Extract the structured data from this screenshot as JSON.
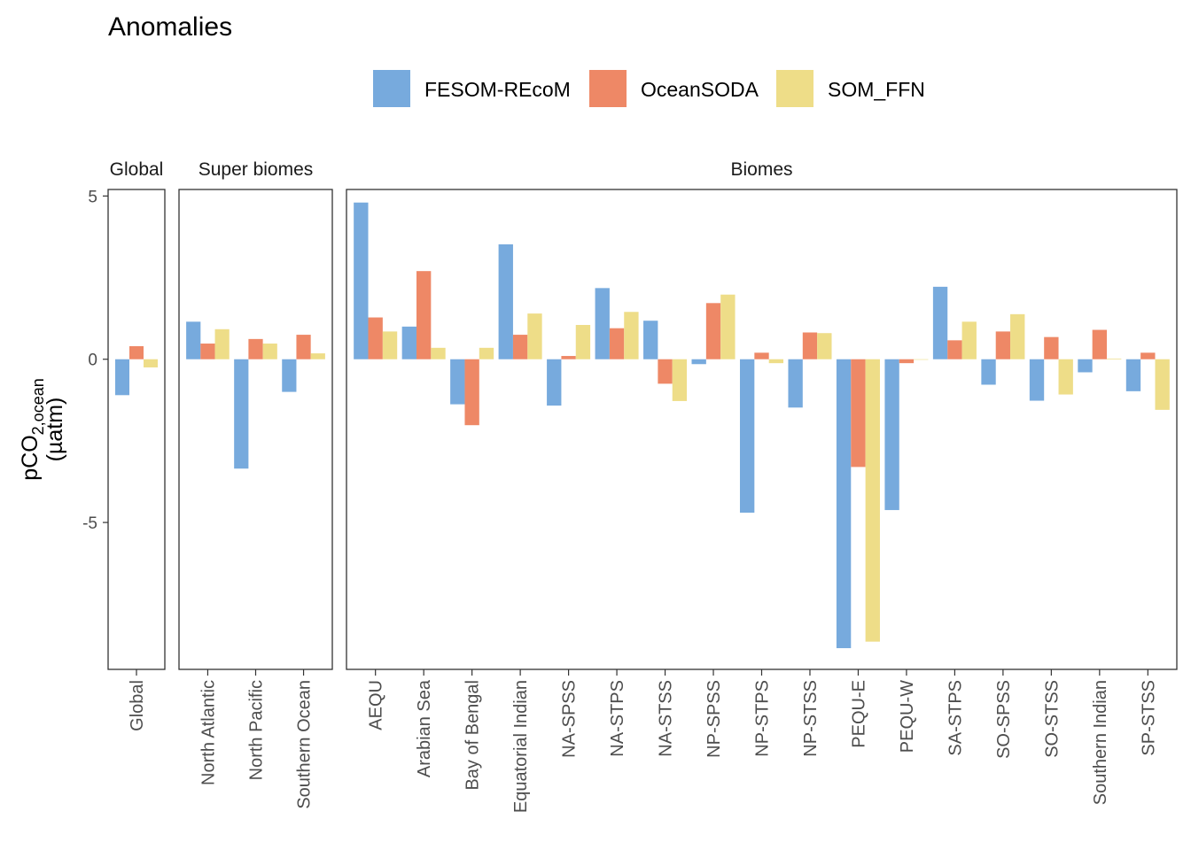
{
  "chart_data": {
    "type": "bar",
    "title": "Anomalies",
    "ylabel": "pCO2,ocean (µatm)",
    "ylabel_main": "pCO",
    "ylabel_sub": "2,ocean",
    "ylabel_unit": "(µatm)",
    "ylim": [
      -9.5,
      5.2
    ],
    "yticks": [
      5,
      0,
      -5
    ],
    "ytick_labels": [
      "5",
      "0",
      "-5"
    ],
    "grid": false,
    "legend_position": "top",
    "series": [
      {
        "name": "FESOM-REcoM",
        "color": "#77AADD"
      },
      {
        "name": "OceanSODA",
        "color": "#EE8866"
      },
      {
        "name": "SOM_FFN",
        "color": "#EEDD88"
      }
    ],
    "panels": [
      {
        "title": "Global",
        "categories": [
          "Global"
        ],
        "values": [
          [
            -1.1
          ],
          [
            0.4
          ],
          [
            -0.25
          ]
        ]
      },
      {
        "title": "Super biomes",
        "categories": [
          "North Atlantic",
          "North Pacific",
          "Southern Ocean"
        ],
        "values": [
          [
            1.15,
            -3.35,
            -1.0
          ],
          [
            0.48,
            0.62,
            0.75
          ],
          [
            0.92,
            0.48,
            0.18
          ]
        ]
      },
      {
        "title": "Biomes",
        "categories": [
          "AEQU",
          "Arabian Sea",
          "Bay of Bengal",
          "Equatorial Indian",
          "NA-SPSS",
          "NA-STPS",
          "NA-STSS",
          "NP-SPSS",
          "NP-STPS",
          "NP-STSS",
          "PEQU-E",
          "PEQU-W",
          "SA-STPS",
          "SO-SPSS",
          "SO-STSS",
          "Southern Indian",
          "SP-STSS"
        ],
        "values": [
          [
            4.8,
            1.0,
            -1.38,
            3.52,
            -1.42,
            2.18,
            1.18,
            -0.15,
            -4.7,
            -1.48,
            -8.85,
            -4.62,
            2.22,
            -0.78,
            -1.27,
            -0.4,
            -0.98
          ],
          [
            1.28,
            2.7,
            -2.02,
            0.75,
            0.1,
            0.95,
            -0.75,
            1.72,
            0.2,
            0.82,
            -3.3,
            -0.12,
            0.58,
            0.85,
            0.68,
            0.9,
            0.2
          ],
          [
            0.85,
            0.35,
            0.35,
            1.4,
            1.05,
            1.45,
            -1.28,
            1.98,
            -0.12,
            0.8,
            -8.65,
            0.0,
            1.15,
            1.38,
            -1.08,
            0.02,
            -1.55
          ]
        ]
      }
    ]
  }
}
